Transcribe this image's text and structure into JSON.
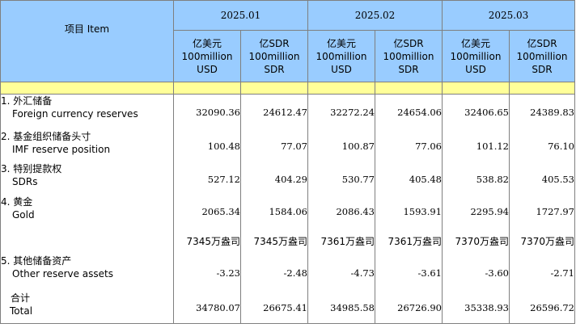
{
  "header": {
    "item_label": "项目 Item",
    "months": [
      "2025.01",
      "2025.02",
      "2025.03"
    ],
    "unit_usd": {
      "line1": "亿美元",
      "line2": "100million",
      "line3": "USD"
    },
    "unit_sdr": {
      "line1": "亿SDR",
      "line2": "100million",
      "line3": "SDR"
    }
  },
  "rows": [
    {
      "zh": "1.  外汇储备",
      "en": "Foreign currency reserves",
      "values": [
        "32090.36",
        "24612.47",
        "32272.24",
        "24654.06",
        "32406.65",
        "24389.83"
      ]
    },
    {
      "zh": "2.  基金组织储备头寸",
      "en": "IMF reserve position",
      "values": [
        "100.48",
        "77.07",
        "100.87",
        "77.06",
        "101.12",
        "76.10"
      ]
    },
    {
      "zh": "3.  特别提款权",
      "en": "SDRs",
      "values": [
        "527.12",
        "404.29",
        "530.77",
        "405.48",
        "538.82",
        "405.53"
      ]
    },
    {
      "zh": "4.  黄金",
      "en": "Gold",
      "values": [
        "2065.34",
        "1584.06",
        "2086.43",
        "1593.91",
        "2295.94",
        "1727.97"
      ]
    },
    {
      "zh": "",
      "en": "",
      "values": [
        "7345万盎司",
        "7345万盎司",
        "7361万盎司",
        "7361万盎司",
        "7370万盎司",
        "7370万盎司"
      ]
    },
    {
      "zh": "5.  其他储备资产",
      "en": "Other reserve assets",
      "values": [
        "-3.23",
        "-2.48",
        "-4.73",
        "-3.61",
        "-3.60",
        "-2.71"
      ]
    },
    {
      "zh": "合计",
      "en": "Total",
      "values": [
        "34780.07",
        "26675.41",
        "34985.58",
        "26726.90",
        "35338.93",
        "26596.72"
      ]
    }
  ]
}
